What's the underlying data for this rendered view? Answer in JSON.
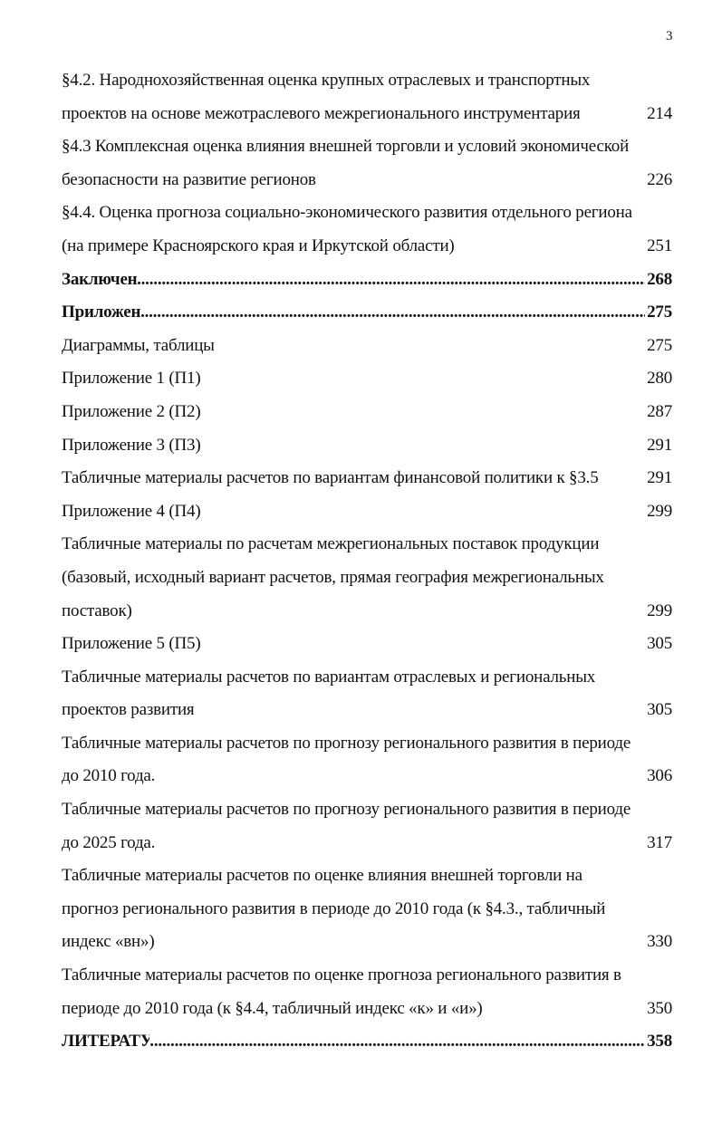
{
  "page_number": "3",
  "entries": [
    {
      "lines": [
        "§4.2. Народнохозяйственная оценка крупных отраслевых и транспортных",
        "проектов на основе межотраслевого межрегионального инструментария"
      ],
      "page": "214"
    },
    {
      "lines": [
        "§4.3 Комплексная оценка влияния внешней торговли и условий экономической",
        "безопасности на развитие регионов"
      ],
      "page": "226"
    },
    {
      "lines": [
        "§4.4. Оценка прогноза социально-экономического развития отдельного региона",
        "(на примере Красноярского края и Иркутской области)"
      ],
      "page": "251"
    },
    {
      "lines": [
        "Заключение"
      ],
      "page": "268",
      "bold": true
    },
    {
      "lines": [
        "Приложения"
      ],
      "page": "275",
      "bold": true
    },
    {
      "lines": [
        "Диаграммы, таблицы"
      ],
      "page": "275"
    },
    {
      "lines": [
        "Приложение 1 (П1)"
      ],
      "page": "280"
    },
    {
      "lines": [
        "Приложение 2 (П2)"
      ],
      "page": "287"
    },
    {
      "lines": [
        "Приложение 3 (П3)"
      ],
      "page": "291"
    },
    {
      "lines": [
        "Табличные материалы расчетов по вариантам финансовой политики к §3.5"
      ],
      "page": "291"
    },
    {
      "lines": [
        "Приложение 4 (П4)"
      ],
      "page": "299"
    },
    {
      "lines": [
        "Табличные материалы по расчетам межрегиональных поставок продукции",
        "(базовый, исходный вариант расчетов, прямая география межрегиональных",
        "поставок)"
      ],
      "page": "299"
    },
    {
      "lines": [
        "Приложение 5 (П5)"
      ],
      "page": "305"
    },
    {
      "lines": [
        "Табличные материалы расчетов по вариантам отраслевых и региональных",
        "проектов развития"
      ],
      "page": "305"
    },
    {
      "lines": [
        "Табличные материалы расчетов по прогнозу регионального развития в периоде",
        "до 2010 года."
      ],
      "page": "306"
    },
    {
      "lines": [
        "Табличные материалы расчетов по прогнозу регионального развития в периоде",
        "до 2025 года."
      ],
      "page": "317"
    },
    {
      "lines": [
        "Табличные материалы расчетов по оценке влияния внешней торговли на",
        "прогноз регионального развития в периоде до 2010 года (к §4.3., табличный",
        "индекс «вн»)"
      ],
      "page": "330"
    },
    {
      "lines": [
        "Табличные материалы расчетов по оценке прогноза регионального развития в",
        "периоде до 2010 года (к §4.4, табличный индекс «к» и «и»)"
      ],
      "page": "350"
    },
    {
      "lines": [
        "ЛИТЕРАТУРА"
      ],
      "page": "358",
      "bold": true
    }
  ]
}
